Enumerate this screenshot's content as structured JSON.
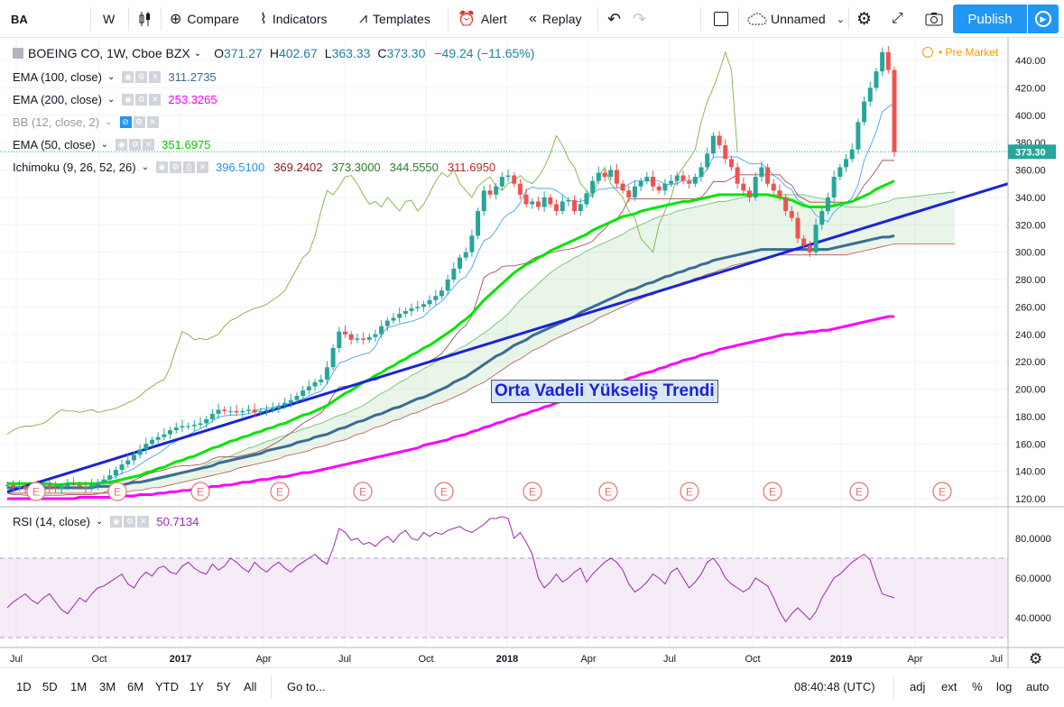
{
  "toolbar": {
    "symbol": "BA",
    "interval": "W",
    "compare": "Compare",
    "indicators": "Indicators",
    "templates": "Templates",
    "alert": "Alert",
    "replay": "Replay",
    "layout_name": "Unnamed",
    "publish": "Publish"
  },
  "header": {
    "instrument": "BOEING CO, 1W, Cboe BZX",
    "o_label": "O",
    "o": "371.27",
    "h_label": "H",
    "h": "402.67",
    "l_label": "L",
    "l": "363.33",
    "c_label": "C",
    "c": "373.30",
    "change": "−49.24 (−11.65%)",
    "pre_market": "Pre Market"
  },
  "indicators": {
    "ema100": {
      "label": "EMA (100, close)",
      "value": "311.2735",
      "color": "#3c6b95"
    },
    "ema200": {
      "label": "EMA (200, close)",
      "value": "253.3265",
      "color": "#ff00ff"
    },
    "bb": {
      "label": "BB (12, close, 2)"
    },
    "ema50": {
      "label": "EMA (50, close)",
      "value": "351.6975",
      "color": "#00e600"
    },
    "ichimoku": {
      "label": "Ichimoku (9, 26, 52, 26)",
      "v1": "396.5100",
      "v2": "369.2402",
      "v3": "373.3000",
      "v4": "344.5550",
      "v5": "311.6950"
    }
  },
  "rsi": {
    "label": "RSI (14, close)",
    "value": "50.7134"
  },
  "annotation": "Orta Vadeli Yükseliş Trendi",
  "price_tag": "373.30",
  "bottom": {
    "ranges": [
      "1D",
      "5D",
      "1M",
      "3M",
      "6M",
      "YTD",
      "1Y",
      "5Y",
      "All"
    ],
    "goto": "Go to...",
    "time": "08:40:48 (UTC)",
    "opts": [
      "adj",
      "ext",
      "%",
      "log",
      "auto"
    ]
  },
  "chart_data": {
    "type": "candlestick",
    "x_ticks": [
      "Jul",
      "Oct",
      "2017",
      "Apr",
      "Jul",
      "Oct",
      "2018",
      "Apr",
      "Jul",
      "Oct",
      "2019",
      "Apr",
      "Jul"
    ],
    "y_ticks": [
      120,
      140,
      160,
      180,
      200,
      220,
      240,
      260,
      280,
      300,
      320,
      340,
      360,
      380,
      400,
      420,
      440
    ],
    "ylim": [
      118,
      450
    ],
    "rsi_ticks": [
      40,
      60,
      80
    ],
    "rsi_band": [
      30,
      70
    ],
    "rsi_ylim": [
      27,
      92
    ],
    "weekly_close": [
      130,
      128,
      129,
      127,
      128,
      129,
      130,
      128,
      127,
      129,
      131,
      130,
      129,
      128,
      130,
      132,
      134,
      137,
      141,
      145,
      148,
      152,
      156,
      160,
      163,
      165,
      167,
      170,
      172,
      173,
      173,
      174,
      175,
      178,
      182,
      185,
      184,
      184,
      183,
      184,
      185,
      183,
      184,
      185,
      186,
      188,
      190,
      192,
      195,
      199,
      202,
      205,
      207,
      216,
      230,
      242,
      240,
      236,
      237,
      236,
      238,
      240,
      246,
      250,
      252,
      255,
      257,
      259,
      260,
      262,
      265,
      268,
      272,
      280,
      288,
      296,
      300,
      312,
      330,
      345,
      342,
      348,
      355,
      356,
      350,
      342,
      335,
      337,
      333,
      340,
      335,
      330,
      337,
      338,
      330,
      335,
      343,
      352,
      358,
      355,
      360,
      350,
      345,
      340,
      348,
      352,
      355,
      348,
      345,
      350,
      352,
      356,
      352,
      350,
      355,
      362,
      372,
      385,
      378,
      368,
      362,
      350,
      345,
      340,
      355,
      362,
      350,
      345,
      340,
      330,
      325,
      310,
      305,
      300,
      320,
      330,
      340,
      355,
      362,
      368,
      375,
      395,
      410,
      420,
      432,
      446,
      433,
      373
    ],
    "ema50": [
      131,
      131,
      131,
      131,
      131,
      131,
      131,
      131,
      130,
      130,
      131,
      131,
      131,
      131,
      131,
      131,
      132,
      132,
      133,
      134,
      135,
      136,
      137,
      139,
      140,
      142,
      143,
      145,
      147,
      148,
      150,
      151,
      153,
      155,
      157,
      158,
      160,
      162,
      163,
      165,
      166,
      168,
      169,
      171,
      172,
      174,
      175,
      177,
      179,
      181,
      182,
      184,
      186,
      188,
      191,
      194,
      197,
      199,
      202,
      205,
      207,
      210,
      212,
      215,
      217,
      220,
      222,
      225,
      227,
      230,
      232,
      235,
      238,
      241,
      244,
      248,
      251,
      255,
      260,
      265,
      269,
      273,
      277,
      281,
      285,
      288,
      291,
      293,
      296,
      298,
      301,
      303,
      305,
      307,
      309,
      311,
      313,
      316,
      318,
      320,
      322,
      324,
      326,
      327,
      328,
      330,
      331,
      332,
      333,
      334,
      335,
      336,
      337,
      337,
      338,
      339,
      340,
      341,
      342,
      342,
      342,
      342,
      342,
      342,
      342,
      342,
      342,
      341,
      340,
      339,
      338,
      336,
      334,
      333,
      333,
      333,
      333,
      334,
      335,
      336,
      337,
      339,
      341,
      343,
      346,
      348,
      350,
      352
    ],
    "ema100": [
      128,
      128,
      128,
      128,
      128,
      128,
      128,
      128,
      128,
      128,
      128,
      128,
      128,
      128,
      128,
      129,
      129,
      129,
      130,
      130,
      131,
      132,
      132,
      133,
      134,
      135,
      136,
      137,
      138,
      139,
      140,
      141,
      142,
      143,
      144,
      146,
      147,
      148,
      149,
      150,
      151,
      152,
      153,
      155,
      156,
      157,
      158,
      159,
      161,
      162,
      163,
      165,
      166,
      167,
      169,
      171,
      172,
      174,
      176,
      177,
      179,
      181,
      182,
      184,
      186,
      187,
      189,
      191,
      193,
      194,
      196,
      198,
      200,
      202,
      205,
      207,
      209,
      212,
      215,
      218,
      221,
      224,
      226,
      229,
      232,
      234,
      236,
      239,
      241,
      243,
      245,
      247,
      249,
      251,
      253,
      256,
      258,
      260,
      262,
      264,
      266,
      268,
      270,
      272,
      273,
      275,
      277,
      278,
      280,
      282,
      283,
      285,
      286,
      288,
      289,
      291,
      292,
      294,
      295,
      296,
      297,
      298,
      299,
      300,
      301,
      302,
      302,
      302,
      302,
      302,
      302,
      302,
      302,
      302,
      302,
      302,
      302,
      303,
      304,
      305,
      306,
      307,
      308,
      309,
      310,
      311,
      311,
      312
    ],
    "ema200": [
      120,
      120,
      120,
      120,
      120,
      120,
      120,
      120,
      120,
      120,
      120,
      120,
      121,
      121,
      121,
      121,
      121,
      121,
      121,
      122,
      122,
      122,
      123,
      123,
      123,
      124,
      124,
      125,
      125,
      126,
      126,
      127,
      127,
      128,
      129,
      129,
      130,
      130,
      131,
      132,
      132,
      133,
      134,
      134,
      135,
      136,
      136,
      137,
      138,
      139,
      139,
      140,
      141,
      142,
      143,
      144,
      145,
      146,
      147,
      148,
      149,
      150,
      151,
      152,
      153,
      154,
      155,
      156,
      157,
      159,
      160,
      161,
      162,
      163,
      165,
      166,
      167,
      169,
      170,
      172,
      173,
      175,
      176,
      178,
      179,
      181,
      182,
      184,
      185,
      187,
      188,
      190,
      191,
      193,
      194,
      196,
      197,
      199,
      200,
      202,
      203,
      205,
      206,
      208,
      209,
      211,
      212,
      213,
      215,
      216,
      218,
      219,
      221,
      222,
      223,
      225,
      226,
      227,
      229,
      230,
      231,
      232,
      233,
      234,
      235,
      236,
      237,
      238,
      239,
      240,
      240,
      241,
      241,
      242,
      242,
      243,
      243,
      244,
      245,
      246,
      247,
      248,
      249,
      250,
      251,
      252,
      253,
      253
    ],
    "trendline": {
      "from": [
        "2016-07",
        125
      ],
      "to": [
        "2019-07",
        350
      ]
    },
    "rsi_values": [
      45,
      48,
      50,
      52,
      49,
      47,
      50,
      52,
      48,
      44,
      42,
      46,
      50,
      48,
      52,
      55,
      56,
      58,
      60,
      62,
      57,
      55,
      60,
      63,
      61,
      65,
      66,
      63,
      62,
      66,
      68,
      65,
      63,
      62,
      67,
      64,
      66,
      70,
      68,
      65,
      63,
      68,
      65,
      63,
      66,
      68,
      65,
      63,
      66,
      68,
      70,
      72,
      69,
      67,
      75,
      85,
      83,
      79,
      80,
      77,
      78,
      76,
      79,
      81,
      78,
      82,
      84,
      80,
      79,
      83,
      81,
      83,
      82,
      84,
      85,
      86,
      84,
      83,
      85,
      87,
      90,
      90,
      91,
      90,
      80,
      83,
      78,
      72,
      60,
      55,
      58,
      62,
      58,
      60,
      63,
      65,
      58,
      62,
      65,
      68,
      70,
      68,
      64,
      57,
      53,
      55,
      58,
      62,
      60,
      57,
      63,
      65,
      60,
      55,
      58,
      62,
      68,
      70,
      66,
      60,
      57,
      55,
      53,
      55,
      60,
      58,
      56,
      50,
      43,
      38,
      42,
      45,
      42,
      39,
      43,
      50,
      55,
      60,
      62,
      65,
      68,
      70,
      72,
      69,
      60,
      52,
      51,
      50
    ]
  }
}
